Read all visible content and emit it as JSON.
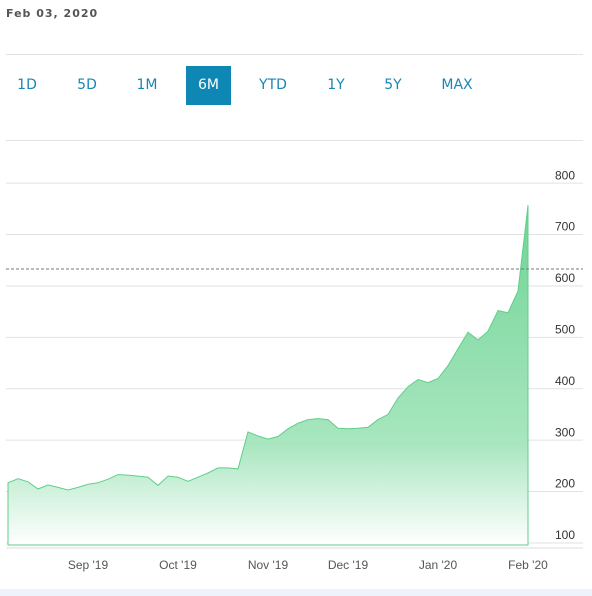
{
  "date": "Feb 03, 2020",
  "range_buttons": [
    "1D",
    "5D",
    "1M",
    "6M",
    "YTD",
    "1Y",
    "5Y",
    "MAX"
  ],
  "selected_range": 3,
  "chart_data": {
    "type": "area",
    "color": "#5fcf8a",
    "categories": [
      null,
      null,
      null,
      null,
      null,
      null,
      null,
      null,
      "Sep '19",
      null,
      null,
      null,
      null,
      null,
      null,
      null,
      null,
      "Oct '19",
      null,
      null,
      null,
      null,
      null,
      null,
      null,
      null,
      "Nov '19",
      null,
      null,
      null,
      null,
      null,
      null,
      null,
      "Dec '19",
      null,
      null,
      null,
      null,
      null,
      null,
      null,
      null,
      "Jan '20",
      null,
      null,
      null,
      null,
      null,
      null,
      null,
      null,
      "Feb '20"
    ],
    "values": [
      217,
      225,
      219,
      205,
      213,
      208,
      203,
      208,
      214,
      217,
      224,
      233,
      232,
      230,
      228,
      212,
      230,
      228,
      220,
      228,
      236,
      246,
      246,
      244,
      316,
      308,
      302,
      307,
      322,
      333,
      340,
      342,
      340,
      323,
      322,
      323,
      325,
      340,
      350,
      382,
      404,
      418,
      412,
      420,
      445,
      478,
      510,
      495,
      512,
      552,
      548,
      590,
      757
    ],
    "reference_line": 633,
    "ylim": [
      96,
      882
    ],
    "yticks": [
      100,
      200,
      300,
      400,
      500,
      600,
      700,
      800
    ],
    "grid": true
  }
}
